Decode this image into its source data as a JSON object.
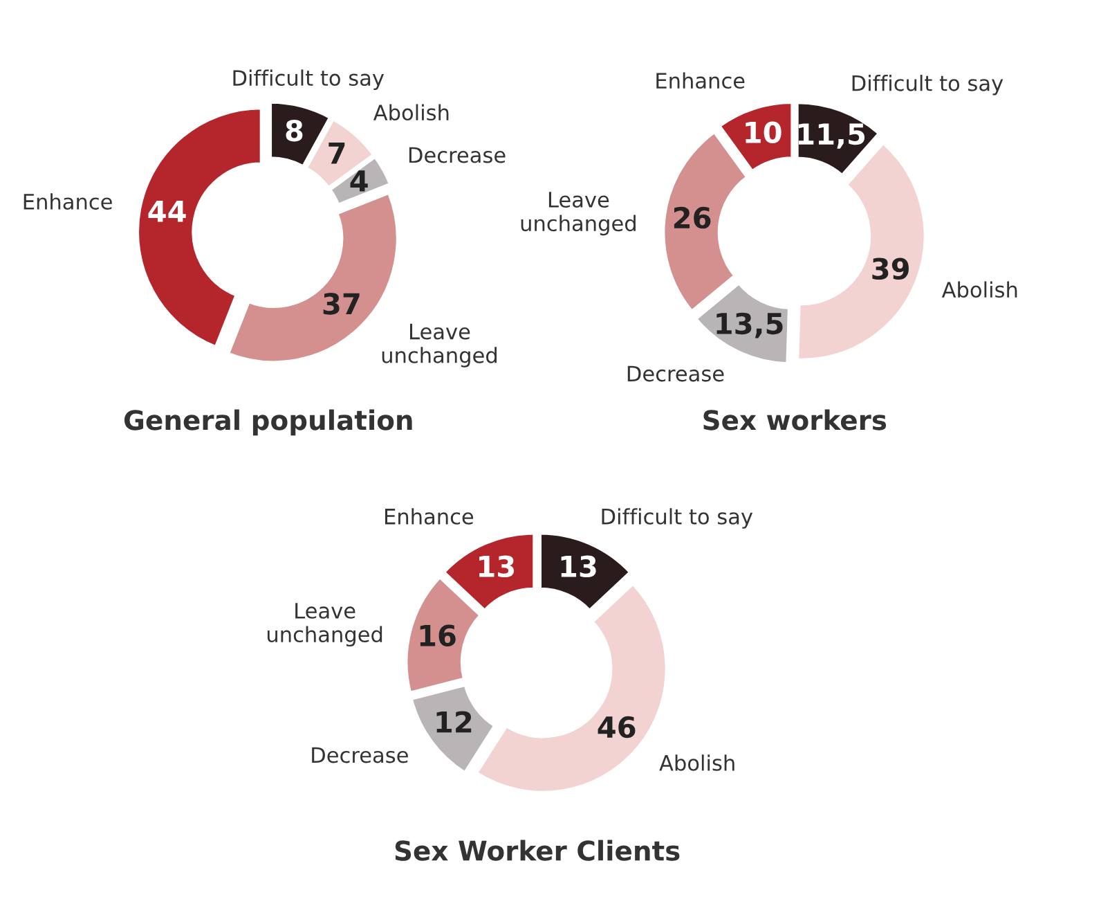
{
  "chart_data": [
    {
      "type": "donut",
      "title": "General population",
      "categories": [
        "Difficult to say",
        "Abolish",
        "Decrease",
        "Leave unchanged",
        "Enhance"
      ],
      "values": [
        8,
        7,
        4,
        37,
        44
      ],
      "value_labels": [
        "8",
        "7",
        "4",
        "37",
        "44"
      ],
      "colors": [
        "#2a1b1d",
        "#f3d2d2",
        "#b9b4b6",
        "#d48f8f",
        "#b5262c"
      ]
    },
    {
      "type": "donut",
      "title": "Sex workers",
      "categories": [
        "Difficult to say",
        "Abolish",
        "Decrease",
        "Leave unchanged",
        "Enhance"
      ],
      "values": [
        11.5,
        39,
        13.5,
        26,
        10
      ],
      "value_labels": [
        "11,5",
        "39",
        "13,5",
        "26",
        "10"
      ],
      "colors": [
        "#2a1b1d",
        "#f3d2d2",
        "#b9b4b6",
        "#d48f8f",
        "#b5262c"
      ]
    },
    {
      "type": "donut",
      "title": "Sex Worker Clients",
      "categories": [
        "Difficult to say",
        "Abolish",
        "Decrease",
        "Leave unchanged",
        "Enhance"
      ],
      "values": [
        13,
        46,
        12,
        16,
        13
      ],
      "value_labels": [
        "13",
        "46",
        "12",
        "16",
        "13"
      ],
      "colors": [
        "#2a1b1d",
        "#f3d2d2",
        "#b9b4b6",
        "#d48f8f",
        "#b5262c"
      ]
    }
  ]
}
